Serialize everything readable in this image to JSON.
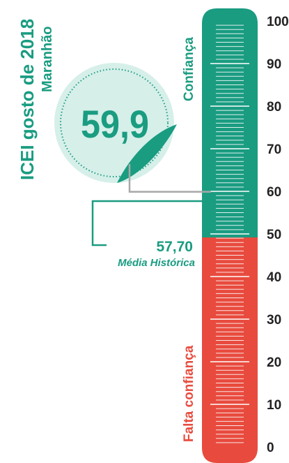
{
  "chart_data": {
    "type": "gauge",
    "title": "ICEI  gosto de 2018",
    "subtitle": "Maranhão",
    "value": 59.9,
    "value_label": "59,9",
    "reference": {
      "value": 57.7,
      "value_label": "57,70",
      "label": "Média Histórica"
    },
    "axis": {
      "min": 0,
      "max": 100,
      "ticks": [
        "0",
        "10",
        "20",
        "30",
        "40",
        "50",
        "60",
        "70",
        "80",
        "90",
        "100"
      ]
    },
    "zones": [
      {
        "label": "Confiança",
        "from": 50,
        "to": 100,
        "color": "#1a9c81"
      },
      {
        "label": "Falta confiança",
        "from": 0,
        "to": 50,
        "color": "#e84b3e"
      }
    ],
    "colors": {
      "badge": "#d6efe9",
      "text_green": "#1a9c81",
      "text_red": "#e84b3e",
      "ticks": "#222222",
      "leader": "#a8a8a8"
    }
  }
}
